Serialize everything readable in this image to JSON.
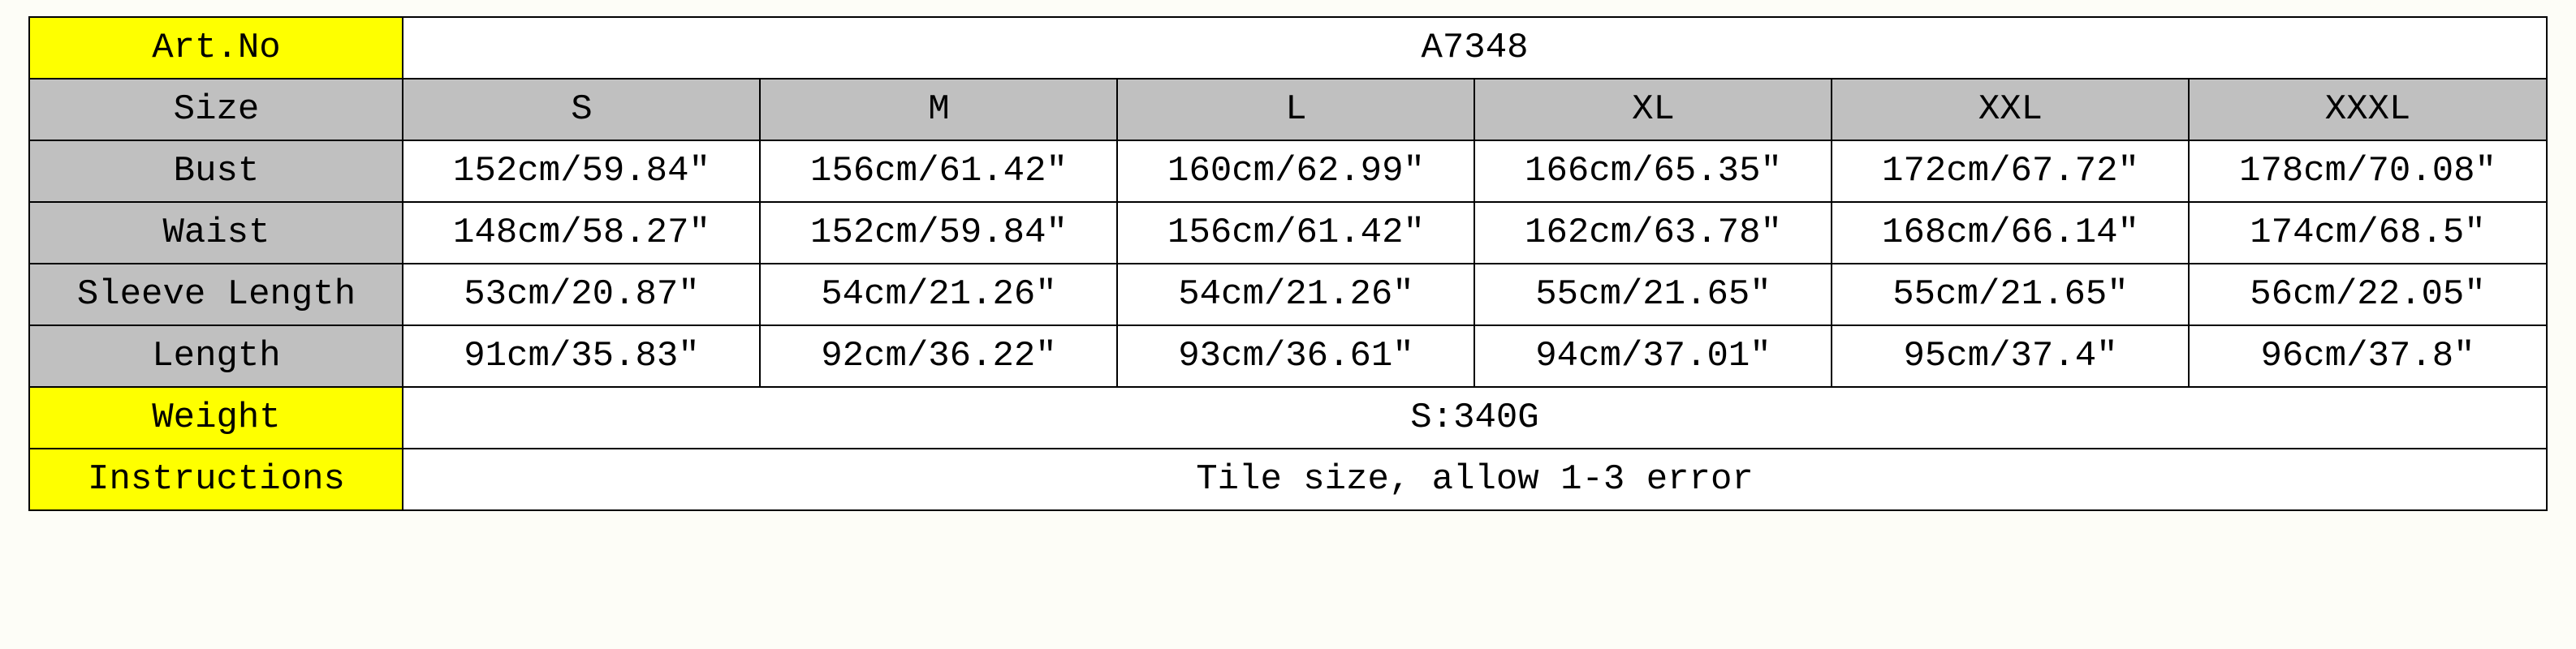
{
  "colors": {
    "yellow": "#feff00",
    "gray": "#c0c0c0",
    "white": "#ffffff",
    "border": "#000000",
    "background": "#fdfdf7"
  },
  "rows": {
    "artNo": {
      "label": "Art.No",
      "value": "A7348"
    },
    "size": {
      "label": "Size",
      "cols": [
        "S",
        "M",
        "L",
        "XL",
        "XXL",
        "XXXL"
      ]
    },
    "bust": {
      "label": "Bust",
      "vals": [
        "152cm/59.84″",
        "156cm/61.42″",
        "160cm/62.99″",
        "166cm/65.35″",
        "172cm/67.72″",
        "178cm/70.08″"
      ]
    },
    "waist": {
      "label": "Waist",
      "vals": [
        "148cm/58.27″",
        "152cm/59.84″",
        "156cm/61.42″",
        "162cm/63.78″",
        "168cm/66.14″",
        "174cm/68.5″"
      ]
    },
    "sleeve": {
      "label": "Sleeve Length",
      "vals": [
        "53cm/20.87″",
        "54cm/21.26″",
        "54cm/21.26″",
        "55cm/21.65″",
        "55cm/21.65″",
        "56cm/22.05″"
      ]
    },
    "length": {
      "label": "Length",
      "vals": [
        "91cm/35.83″",
        "92cm/36.22″",
        "93cm/36.61″",
        "94cm/37.01″",
        "95cm/37.4″",
        "96cm/37.8″"
      ]
    },
    "weight": {
      "label": "Weight",
      "value": "S:340G"
    },
    "instructions": {
      "label": "Instructions",
      "value": "Tile size, allow 1-3 error"
    }
  }
}
